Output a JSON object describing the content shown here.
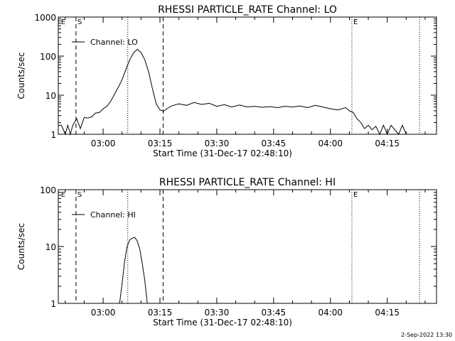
{
  "footer": {
    "date": "2-Sep-2022 13:30"
  },
  "chart_data": [
    {
      "type": "line",
      "title": "RHESSI PARTICLE_RATE Channel: LO",
      "xlabel": "Start Time (31-Dec-17 02:48:10)",
      "ylabel": "Counts/sec",
      "yscale": "log",
      "ylim": [
        1,
        1000
      ],
      "yticks": [
        1,
        10,
        100,
        1000
      ],
      "yticklabels": [
        "1",
        "10",
        "100",
        "1000"
      ],
      "xlim": [
        "02:48:10",
        "04:28:00"
      ],
      "xticks": [
        "03:00",
        "03:15",
        "03:30",
        "03:45",
        "04:00",
        "04:15"
      ],
      "markers": [
        {
          "time": "02:48:30",
          "label": "E",
          "style": "none"
        },
        {
          "time": "02:52:50",
          "label": "S",
          "style": "dashed"
        },
        {
          "time": "03:06:30",
          "label": "",
          "style": "dotted"
        },
        {
          "time": "03:15:50",
          "label": "",
          "style": "dashed"
        },
        {
          "time": "04:05:40",
          "label": "E",
          "style": "dotted"
        },
        {
          "time": "04:23:30",
          "label": "",
          "style": "dotted"
        }
      ],
      "legend": {
        "placement": "top-left",
        "entries": [
          "Channel: LO"
        ]
      },
      "series": [
        {
          "name": "Channel: LO",
          "points": [
            [
              "02:48:10",
              1.7
            ],
            [
              "02:49:00",
              1.7
            ],
            [
              "02:50:00",
              1.0
            ],
            [
              "02:50:40",
              1.7
            ],
            [
              "02:51:20",
              1.0
            ],
            [
              "02:52:00",
              1.7
            ],
            [
              "02:53:00",
              2.5
            ],
            [
              "02:54:00",
              1.4
            ],
            [
              "02:55:00",
              2.7
            ],
            [
              "02:56:00",
              2.6
            ],
            [
              "02:57:00",
              2.8
            ],
            [
              "02:58:00",
              3.5
            ],
            [
              "02:59:00",
              3.6
            ],
            [
              "03:00:00",
              4.5
            ],
            [
              "03:01:00",
              5.2
            ],
            [
              "03:02:00",
              7.0
            ],
            [
              "03:03:00",
              10.5
            ],
            [
              "03:04:00",
              16
            ],
            [
              "03:05:00",
              25
            ],
            [
              "03:06:00",
              45
            ],
            [
              "03:07:00",
              80
            ],
            [
              "03:08:00",
              120
            ],
            [
              "03:09:00",
              150
            ],
            [
              "03:10:00",
              125
            ],
            [
              "03:11:00",
              80
            ],
            [
              "03:12:00",
              40
            ],
            [
              "03:13:00",
              15
            ],
            [
              "03:14:00",
              6
            ],
            [
              "03:15:00",
              4.2
            ],
            [
              "03:16:00",
              3.9
            ],
            [
              "03:17:00",
              4.6
            ],
            [
              "03:18:00",
              5.3
            ],
            [
              "03:20:00",
              6.0
            ],
            [
              "03:22:00",
              5.5
            ],
            [
              "03:24:00",
              6.5
            ],
            [
              "03:26:00",
              5.8
            ],
            [
              "03:28:00",
              6.2
            ],
            [
              "03:30:00",
              5.2
            ],
            [
              "03:32:00",
              5.7
            ],
            [
              "03:34:00",
              5.0
            ],
            [
              "03:36:00",
              5.6
            ],
            [
              "03:38:00",
              5.0
            ],
            [
              "03:40:00",
              5.2
            ],
            [
              "03:42:00",
              4.9
            ],
            [
              "03:44:00",
              5.1
            ],
            [
              "03:46:00",
              4.8
            ],
            [
              "03:48:00",
              5.2
            ],
            [
              "03:50:00",
              5.0
            ],
            [
              "03:52:00",
              5.3
            ],
            [
              "03:54:00",
              4.8
            ],
            [
              "03:56:00",
              5.5
            ],
            [
              "03:58:00",
              5.0
            ],
            [
              "04:00:00",
              4.5
            ],
            [
              "04:02:00",
              4.2
            ],
            [
              "04:04:00",
              4.8
            ],
            [
              "04:05:00",
              4.0
            ],
            [
              "04:06:00",
              3.6
            ],
            [
              "04:07:00",
              2.5
            ],
            [
              "04:08:00",
              2.0
            ],
            [
              "04:09:00",
              1.4
            ],
            [
              "04:10:00",
              1.7
            ],
            [
              "04:11:00",
              1.3
            ],
            [
              "04:12:00",
              1.6
            ],
            [
              "04:13:00",
              1.0
            ],
            [
              "04:14:00",
              1.7
            ],
            [
              "04:15:00",
              1.0
            ],
            [
              "04:16:00",
              1.7
            ],
            [
              "04:17:00",
              1.3
            ],
            [
              "04:18:00",
              1.0
            ],
            [
              "04:19:00",
              1.7
            ],
            [
              "04:20:00",
              1.0
            ]
          ]
        }
      ]
    },
    {
      "type": "line",
      "title": "RHESSI PARTICLE_RATE Channel: HI",
      "xlabel": "Start Time (31-Dec-17 02:48:10)",
      "ylabel": "Counts/sec",
      "yscale": "log",
      "ylim": [
        1,
        100
      ],
      "yticks": [
        1,
        10,
        100
      ],
      "yticklabels": [
        "1",
        "10",
        "100"
      ],
      "xlim": [
        "02:48:10",
        "04:28:00"
      ],
      "xticks": [
        "03:00",
        "03:15",
        "03:30",
        "03:45",
        "04:00",
        "04:15"
      ],
      "markers": [
        {
          "time": "02:48:30",
          "label": "E",
          "style": "none"
        },
        {
          "time": "02:52:50",
          "label": "S",
          "style": "dashed"
        },
        {
          "time": "03:06:30",
          "label": "",
          "style": "dotted"
        },
        {
          "time": "03:15:50",
          "label": "",
          "style": "dashed"
        },
        {
          "time": "04:05:40",
          "label": "E",
          "style": "dotted"
        },
        {
          "time": "04:23:30",
          "label": "",
          "style": "dotted"
        }
      ],
      "legend": {
        "placement": "top-left",
        "entries": [
          "Channel: HI"
        ]
      },
      "series": [
        {
          "name": "Channel: HI",
          "points": [
            [
              "03:04:20",
              1.0
            ],
            [
              "03:05:00",
              2.2
            ],
            [
              "03:05:40",
              5.5
            ],
            [
              "03:06:20",
              10
            ],
            [
              "03:07:00",
              13
            ],
            [
              "03:07:40",
              14
            ],
            [
              "03:08:20",
              14.5
            ],
            [
              "03:09:00",
              12.5
            ],
            [
              "03:09:40",
              9
            ],
            [
              "03:10:20",
              5
            ],
            [
              "03:11:00",
              2.5
            ],
            [
              "03:11:40",
              1.0
            ]
          ]
        }
      ]
    }
  ]
}
